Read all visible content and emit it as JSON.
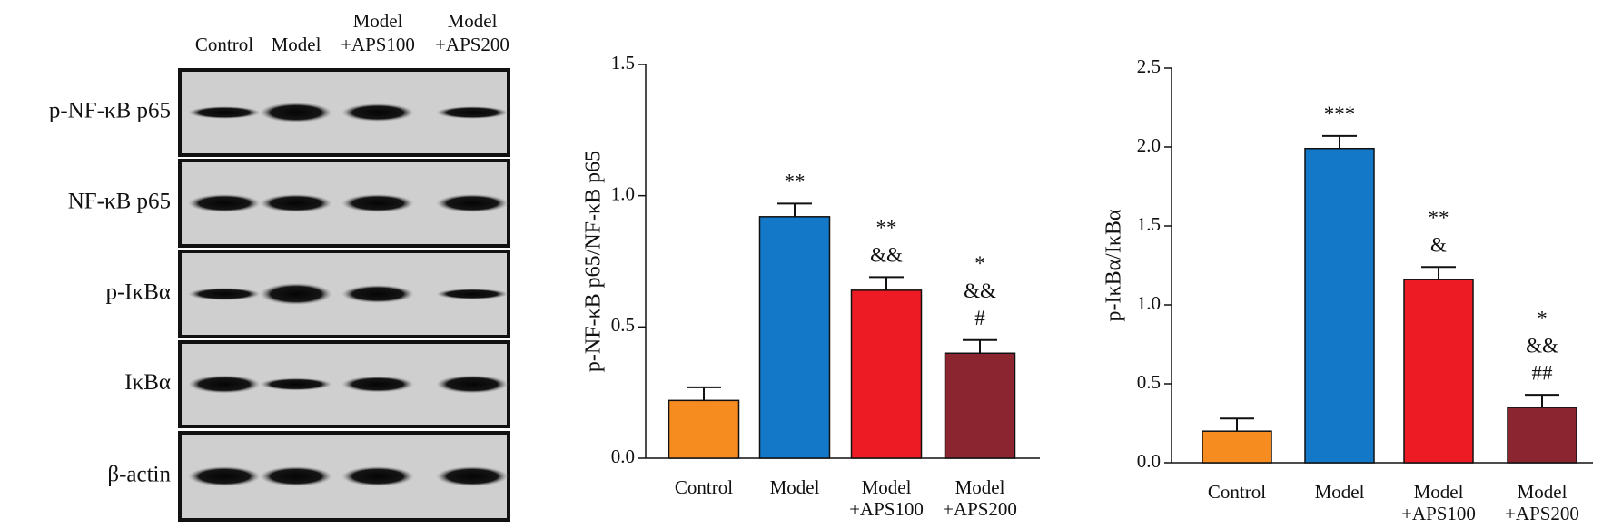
{
  "blot": {
    "lanes": [
      [
        "Control"
      ],
      [
        "Model"
      ],
      [
        "Model",
        "+APS100"
      ],
      [
        "Model",
        "+APS200"
      ]
    ],
    "bands": [
      "p-NF-κB p65",
      "NF-κB p65",
      "p-IκBα",
      "IκBα",
      "β-actin"
    ]
  },
  "chart_data": [
    {
      "type": "bar",
      "y_label": "p-NF-κB p65/NF-κB p65",
      "categories": [
        [
          "Control"
        ],
        [
          "Model"
        ],
        [
          "Model",
          "+APS100"
        ],
        [
          "Model",
          "+APS200"
        ]
      ],
      "values": [
        0.22,
        0.92,
        0.64,
        0.4
      ],
      "errors": [
        0.05,
        0.05,
        0.05,
        0.05
      ],
      "colors": [
        "#f68b1f",
        "#1478c8",
        "#ed1c24",
        "#8b2530"
      ],
      "annotations": [
        [],
        [
          "**"
        ],
        [
          "**",
          "&&"
        ],
        [
          "*",
          "&&",
          "#"
        ]
      ],
      "ylim": [
        0,
        1.5
      ],
      "yticks": [
        {
          "value": 0,
          "label": "0.0"
        },
        0.5,
        {
          "value": 1,
          "label": "1.0"
        },
        1.5
      ]
    },
    {
      "type": "bar",
      "y_label": "p-IκBα/IκBα",
      "categories": [
        [
          "Control"
        ],
        [
          "Model"
        ],
        [
          "Model",
          "+APS100"
        ],
        [
          "Model",
          "+APS200"
        ]
      ],
      "values": [
        0.2,
        1.99,
        1.16,
        0.35
      ],
      "errors": [
        0.08,
        0.08,
        0.08,
        0.08
      ],
      "colors": [
        "#f68b1f",
        "#1478c8",
        "#ed1c24",
        "#8b2530"
      ],
      "annotations": [
        [],
        [
          "***"
        ],
        [
          "**",
          "&"
        ],
        [
          "*",
          "&&",
          "##"
        ]
      ],
      "ylim": [
        0,
        2.5
      ],
      "yticks": [
        {
          "value": 0,
          "label": "0.0"
        },
        0.5,
        {
          "value": 1,
          "label": "1.0"
        },
        1.5,
        {
          "value": 2,
          "label": "2.0"
        },
        2.5
      ]
    }
  ]
}
